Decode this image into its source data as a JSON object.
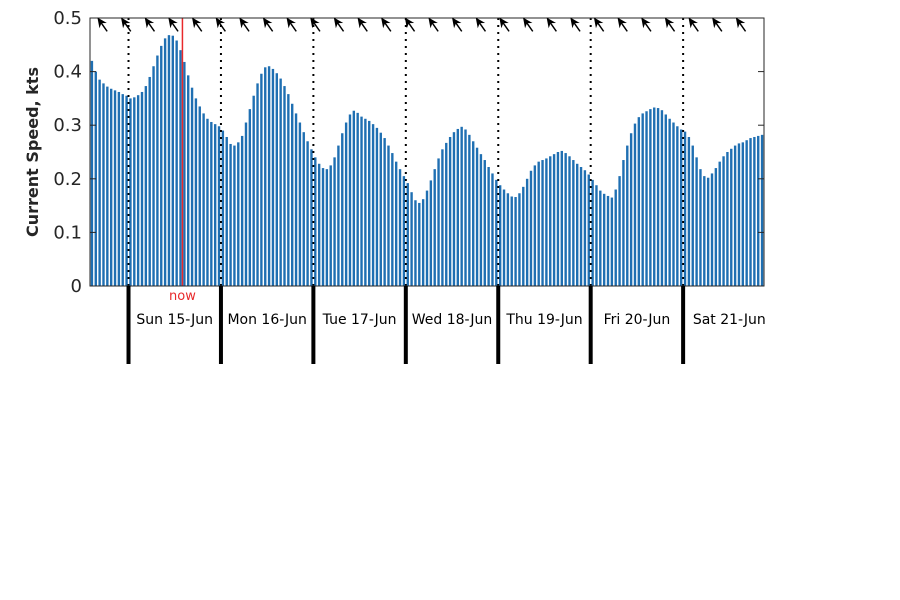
{
  "chart_data": {
    "type": "bar",
    "ylabel": "Current Speed, kts",
    "ylim": [
      0,
      0.5
    ],
    "yticks": [
      "0",
      "0.1",
      "0.2",
      "0.3",
      "0.4",
      "0.5"
    ],
    "grid": false,
    "bar_color": "#1f6fb2",
    "now_color": "#e8292b",
    "now_label": "now",
    "now_hours_after_first_sample": 24,
    "hours_per_sample": 1,
    "day_labels": [
      "Sun 15-Jun",
      "Mon 16-Jun",
      "Tue 17-Jun",
      "Wed 18-Jun",
      "Thu 19-Jun",
      "Fri 20-Jun",
      "Sat 21-Jun"
    ],
    "day_boundary_samples_after_first": [
      10,
      34,
      58,
      82,
      106,
      130,
      154
    ],
    "direction_arrow_count": 28,
    "direction_arrow_rotation_deg": -35,
    "values": [
      0.42,
      0.4,
      0.385,
      0.378,
      0.372,
      0.368,
      0.365,
      0.362,
      0.358,
      0.355,
      0.35,
      0.352,
      0.356,
      0.362,
      0.373,
      0.39,
      0.41,
      0.43,
      0.448,
      0.462,
      0.468,
      0.467,
      0.458,
      0.44,
      0.418,
      0.393,
      0.37,
      0.35,
      0.335,
      0.322,
      0.312,
      0.306,
      0.302,
      0.298,
      0.29,
      0.278,
      0.265,
      0.262,
      0.268,
      0.28,
      0.305,
      0.33,
      0.355,
      0.378,
      0.396,
      0.408,
      0.41,
      0.405,
      0.397,
      0.387,
      0.373,
      0.358,
      0.34,
      0.322,
      0.305,
      0.287,
      0.27,
      0.255,
      0.24,
      0.228,
      0.22,
      0.218,
      0.225,
      0.24,
      0.262,
      0.285,
      0.305,
      0.32,
      0.327,
      0.323,
      0.316,
      0.312,
      0.308,
      0.302,
      0.295,
      0.286,
      0.276,
      0.262,
      0.248,
      0.232,
      0.218,
      0.205,
      0.192,
      0.175,
      0.16,
      0.155,
      0.162,
      0.178,
      0.197,
      0.218,
      0.238,
      0.255,
      0.267,
      0.278,
      0.287,
      0.293,
      0.297,
      0.292,
      0.282,
      0.27,
      0.258,
      0.246,
      0.235,
      0.222,
      0.21,
      0.198,
      0.188,
      0.18,
      0.173,
      0.167,
      0.166,
      0.173,
      0.185,
      0.2,
      0.215,
      0.225,
      0.232,
      0.235,
      0.238,
      0.242,
      0.246,
      0.25,
      0.252,
      0.248,
      0.242,
      0.235,
      0.228,
      0.222,
      0.216,
      0.208,
      0.198,
      0.188,
      0.178,
      0.172,
      0.168,
      0.165,
      0.18,
      0.205,
      0.235,
      0.262,
      0.285,
      0.303,
      0.315,
      0.322,
      0.326,
      0.33,
      0.333,
      0.332,
      0.328,
      0.32,
      0.312,
      0.305,
      0.298,
      0.292,
      0.288,
      0.278,
      0.262,
      0.24,
      0.218,
      0.205,
      0.202,
      0.21,
      0.22,
      0.232,
      0.242,
      0.25,
      0.256,
      0.262,
      0.266,
      0.268,
      0.272,
      0.276,
      0.278,
      0.28,
      0.282
    ]
  }
}
